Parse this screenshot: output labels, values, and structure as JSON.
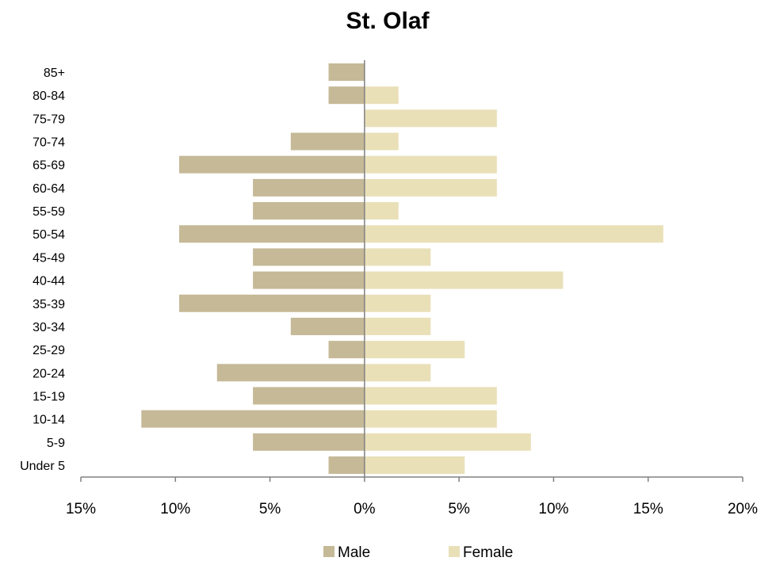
{
  "chart_data": {
    "type": "bar",
    "orientation": "horizontal",
    "title": "St. Olaf",
    "categories": [
      "Under 5",
      "5-9",
      "10-14",
      "15-19",
      "20-24",
      "25-29",
      "30-34",
      "35-39",
      "40-44",
      "45-49",
      "50-54",
      "55-59",
      "60-64",
      "65-69",
      "70-74",
      "75-79",
      "80-84",
      "85+"
    ],
    "series": [
      {
        "name": "Male",
        "color": "#c5b997",
        "values": [
          -1.9,
          -5.9,
          -11.8,
          -5.9,
          -7.8,
          -1.9,
          -3.9,
          -9.8,
          -5.9,
          -5.9,
          -9.8,
          -5.9,
          -5.9,
          -9.8,
          -3.9,
          0,
          -1.9,
          -1.9
        ]
      },
      {
        "name": "Female",
        "color": "#e9e0b8",
        "values": [
          5.3,
          8.8,
          7.0,
          7.0,
          3.5,
          5.3,
          3.5,
          3.5,
          10.5,
          3.5,
          15.8,
          1.8,
          7.0,
          7.0,
          1.8,
          7.0,
          1.8,
          0
        ]
      }
    ],
    "xlim": [
      -15,
      20
    ],
    "xticks": [
      -15,
      -10,
      -5,
      0,
      5,
      10,
      15,
      20
    ],
    "xtick_labels": [
      "15%",
      "10%",
      "5%",
      "0%",
      "5%",
      "10%",
      "15%",
      "20%"
    ],
    "grid": false,
    "legend": "bottom"
  }
}
